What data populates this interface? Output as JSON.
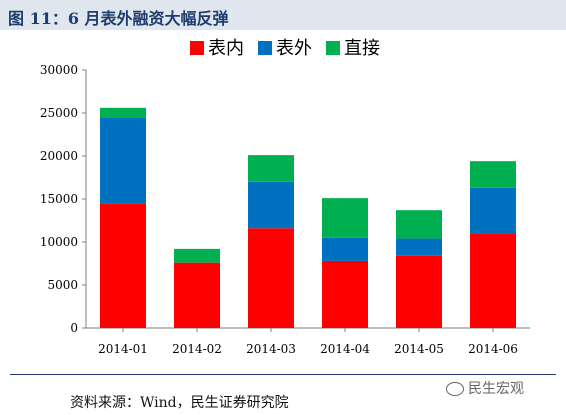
{
  "header": {
    "title": "图 11：6 月表外融资大幅反弹"
  },
  "footer": {
    "source": "资料来源：Wind，民生证券研究院",
    "watermark": "民生宏观"
  },
  "chart_data": {
    "type": "bar",
    "stacked": true,
    "title": "",
    "xlabel": "",
    "ylabel": "",
    "ylim": [
      0,
      30000
    ],
    "yticks": [
      0,
      5000,
      10000,
      15000,
      20000,
      25000,
      30000
    ],
    "grid": false,
    "legend_position": "top",
    "categories": [
      "2014-01",
      "2014-02",
      "2014-03",
      "2014-04",
      "2014-05",
      "2014-06"
    ],
    "series": [
      {
        "name": "表内",
        "color": "#ff0000",
        "values": [
          14500,
          7600,
          11600,
          7800,
          8400,
          11000
        ]
      },
      {
        "name": "表外",
        "color": "#0070c0",
        "values": [
          10000,
          0,
          5400,
          2700,
          2000,
          5300
        ]
      },
      {
        "name": "直接",
        "color": "#00b050",
        "values": [
          1100,
          1600,
          3100,
          4600,
          3300,
          3100
        ]
      }
    ]
  }
}
